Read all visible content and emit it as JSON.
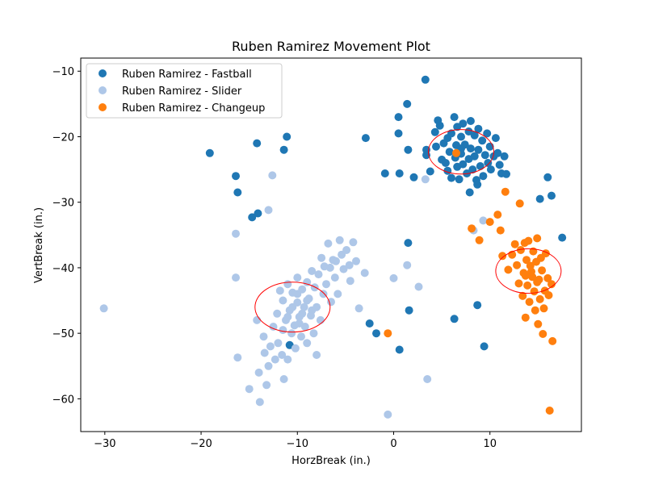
{
  "chart_data": {
    "type": "scatter",
    "title": "Ruben Ramirez Movement Plot",
    "xlabel": "HorzBreak (in.)",
    "ylabel": "VertBreak (in.)",
    "xlim": [
      -32.5,
      19.5
    ],
    "ylim": [
      -65,
      -8
    ],
    "xticks": [
      -30,
      -20,
      -10,
      0,
      10
    ],
    "yticks": [
      -60,
      -50,
      -40,
      -30,
      -20,
      -10
    ],
    "grid": false,
    "legend_position": "top-left",
    "series": [
      {
        "name": "Ruben Ramirez - Fastball",
        "color": "#1f77b4",
        "points": [
          [
            -19.1,
            -22.5
          ],
          [
            -16.4,
            -26
          ],
          [
            -16.2,
            -28.5
          ],
          [
            -14.7,
            -32.3
          ],
          [
            -14.2,
            -21
          ],
          [
            -14.1,
            -31.7
          ],
          [
            -11.4,
            -22
          ],
          [
            -11.1,
            -20
          ],
          [
            -2.9,
            -20.2
          ],
          [
            -0.9,
            -25.6
          ],
          [
            0.5,
            -17
          ],
          [
            0.5,
            -19.5
          ],
          [
            0.6,
            -25.6
          ],
          [
            1.4,
            -15
          ],
          [
            1.5,
            -22
          ],
          [
            2.1,
            -26.2
          ],
          [
            3.3,
            -11.3
          ],
          [
            3.4,
            -22
          ],
          [
            3.4,
            -22.8
          ],
          [
            3.8,
            -25.3
          ],
          [
            4.3,
            -19.3
          ],
          [
            4.4,
            -21.5
          ],
          [
            4.6,
            -17.5
          ],
          [
            4.8,
            -18.3
          ],
          [
            5.0,
            -23.5
          ],
          [
            5.2,
            -21
          ],
          [
            5.4,
            -24
          ],
          [
            5.6,
            -20.2
          ],
          [
            5.6,
            -25.2
          ],
          [
            5.8,
            -22.3
          ],
          [
            6.0,
            -19.5
          ],
          [
            6.0,
            -26.3
          ],
          [
            6.3,
            -17
          ],
          [
            6.4,
            -23.2
          ],
          [
            6.5,
            -21.3
          ],
          [
            6.6,
            -18.5
          ],
          [
            6.6,
            -24.6
          ],
          [
            6.8,
            -26.5
          ],
          [
            7.0,
            -20
          ],
          [
            7.0,
            -22.6
          ],
          [
            7.2,
            -18
          ],
          [
            7.2,
            -24.2
          ],
          [
            7.4,
            -21.2
          ],
          [
            7.6,
            -25.6
          ],
          [
            7.8,
            -19.2
          ],
          [
            7.8,
            -23.4
          ],
          [
            7.9,
            -28.5
          ],
          [
            8.0,
            -17.6
          ],
          [
            8.0,
            -21.8
          ],
          [
            8.2,
            -25
          ],
          [
            8.4,
            -19.8
          ],
          [
            8.4,
            -23
          ],
          [
            8.6,
            -26.6
          ],
          [
            8.7,
            -27.3
          ],
          [
            8.8,
            -18.8
          ],
          [
            8.8,
            -22
          ],
          [
            9.0,
            -24.5
          ],
          [
            9.2,
            -20.6
          ],
          [
            9.3,
            -26
          ],
          [
            9.5,
            -22.8
          ],
          [
            9.7,
            -19.5
          ],
          [
            9.8,
            -24
          ],
          [
            10.0,
            -21.5
          ],
          [
            10.1,
            -25
          ],
          [
            10.4,
            -23
          ],
          [
            10.6,
            -20.2
          ],
          [
            10.8,
            -22.5
          ],
          [
            11.0,
            -24.3
          ],
          [
            11.2,
            -25.6
          ],
          [
            11.5,
            -23
          ],
          [
            11.7,
            -25.7
          ],
          [
            7.0,
            -21.8
          ],
          [
            1.5,
            -36.2
          ],
          [
            1.6,
            -46.5
          ],
          [
            -2.5,
            -48.5
          ],
          [
            -1.8,
            -50
          ],
          [
            0.6,
            -52.5
          ],
          [
            6.3,
            -47.8
          ],
          [
            8.7,
            -45.7
          ],
          [
            9.4,
            -52
          ],
          [
            -10.8,
            -51.8
          ],
          [
            15.2,
            -29.5
          ],
          [
            16.0,
            -26.2
          ],
          [
            16.4,
            -29
          ],
          [
            17.5,
            -35.4
          ]
        ]
      },
      {
        "name": "Ruben Ramirez - Slider",
        "color": "#aec7e8",
        "points": [
          [
            -30.1,
            -46.2
          ],
          [
            -16.4,
            -34.8
          ],
          [
            -16.4,
            -41.5
          ],
          [
            -16.2,
            -53.7
          ],
          [
            -15,
            -58.5
          ],
          [
            -14.2,
            -48
          ],
          [
            -14,
            -56
          ],
          [
            -13.9,
            -60.5
          ],
          [
            -13.5,
            -50.5
          ],
          [
            -13.4,
            -53
          ],
          [
            -13.2,
            -57.9
          ],
          [
            -13,
            -55
          ],
          [
            -13,
            -31.2
          ],
          [
            -12.8,
            -52
          ],
          [
            -12.6,
            -25.9
          ],
          [
            -12.5,
            -49
          ],
          [
            -12.3,
            -54
          ],
          [
            -12.1,
            -47
          ],
          [
            -12,
            -51.5
          ],
          [
            -11.8,
            -43.5
          ],
          [
            -11.6,
            -53.3
          ],
          [
            -11.5,
            -45
          ],
          [
            -11.4,
            -57
          ],
          [
            -11.2,
            -48
          ],
          [
            -11,
            -54
          ],
          [
            -11,
            -42.5
          ],
          [
            -10.8,
            -46.5
          ],
          [
            -10.6,
            -50
          ],
          [
            -10.5,
            -43.8
          ],
          [
            -10.3,
            -48.8
          ],
          [
            -10.2,
            -52.3
          ],
          [
            -10,
            -45.3
          ],
          [
            -10,
            -41.5
          ],
          [
            -9.8,
            -47.5
          ],
          [
            -9.6,
            -50.5
          ],
          [
            -9.5,
            -43.3
          ],
          [
            -9.3,
            -46
          ],
          [
            -9.2,
            -49
          ],
          [
            -9,
            -42.2
          ],
          [
            -9,
            -51.5
          ],
          [
            -8.8,
            -44.7
          ],
          [
            -8.6,
            -47.3
          ],
          [
            -8.5,
            -40.5
          ],
          [
            -8.3,
            -50
          ],
          [
            -8.2,
            -43
          ],
          [
            -8,
            -46
          ],
          [
            -8,
            -53.3
          ],
          [
            -7.8,
            -41
          ],
          [
            -7.6,
            -48
          ],
          [
            -7.5,
            -38.5
          ],
          [
            -7.3,
            -44
          ],
          [
            -7.2,
            -39.8
          ],
          [
            -7,
            -42.5
          ],
          [
            -6.8,
            -36.3
          ],
          [
            -6.6,
            -40
          ],
          [
            -6.5,
            -45.2
          ],
          [
            -6.3,
            -38.8
          ],
          [
            -6.1,
            -41.5
          ],
          [
            -6,
            -39
          ],
          [
            -5.8,
            -44
          ],
          [
            -5.6,
            -35.8
          ],
          [
            -5.4,
            -38
          ],
          [
            -5.2,
            -40.2
          ],
          [
            -4.9,
            -37.3
          ],
          [
            -4.6,
            -39.6
          ],
          [
            -4.5,
            -42
          ],
          [
            -4.2,
            -36.1
          ],
          [
            -3.9,
            -39
          ],
          [
            -3.6,
            -46.2
          ],
          [
            -3,
            -40.8
          ],
          [
            -9.5,
            -47
          ],
          [
            -10.5,
            -46
          ],
          [
            -11,
            -47.5
          ],
          [
            -9,
            -45
          ],
          [
            -8.5,
            -46.5
          ],
          [
            -10,
            -44
          ],
          [
            -9.8,
            -48.5
          ],
          [
            -11.5,
            -49.5
          ],
          [
            -0.6,
            -62.4
          ],
          [
            0,
            -41.6
          ],
          [
            1.4,
            -39.6
          ],
          [
            2.6,
            -42.9
          ],
          [
            3.3,
            -26.5
          ],
          [
            3.5,
            -57
          ],
          [
            8.3,
            -34.3
          ],
          [
            9.3,
            -32.8
          ]
        ]
      },
      {
        "name": "Ruben Ramirez - Changeup",
        "color": "#ff7f0e",
        "points": [
          [
            -0.6,
            -50
          ],
          [
            6.5,
            -22.5
          ],
          [
            8.1,
            -34
          ],
          [
            8.9,
            -35.8
          ],
          [
            10,
            -33
          ],
          [
            10.8,
            -31.9
          ],
          [
            11.1,
            -34.3
          ],
          [
            11.3,
            -38.2
          ],
          [
            11.6,
            -28.4
          ],
          [
            11.9,
            -40.3
          ],
          [
            12.3,
            -38
          ],
          [
            12.6,
            -36.4
          ],
          [
            12.8,
            -39.6
          ],
          [
            13,
            -42.4
          ],
          [
            13.1,
            -30.2
          ],
          [
            13.2,
            -37.3
          ],
          [
            13.4,
            -44.3
          ],
          [
            13.5,
            -40.8
          ],
          [
            13.6,
            -36.2
          ],
          [
            13.7,
            -47.6
          ],
          [
            13.8,
            -38.8
          ],
          [
            13.9,
            -42.7
          ],
          [
            14,
            -35.9
          ],
          [
            14.1,
            -45.2
          ],
          [
            14.2,
            -39.7
          ],
          [
            14.4,
            -41.4
          ],
          [
            14.5,
            -37.5
          ],
          [
            14.6,
            -43.6
          ],
          [
            14.7,
            -46.5
          ],
          [
            14.8,
            -39.1
          ],
          [
            14.9,
            -35.5
          ],
          [
            15,
            -48.6
          ],
          [
            15.1,
            -41.8
          ],
          [
            15.2,
            -44.8
          ],
          [
            15.3,
            -38.5
          ],
          [
            15.4,
            -40.4
          ],
          [
            15.5,
            -50.1
          ],
          [
            15.6,
            -46.2
          ],
          [
            15.7,
            -43.5
          ],
          [
            15.8,
            -37.8
          ],
          [
            16,
            -41.6
          ],
          [
            16.1,
            -44.2
          ],
          [
            16.2,
            -61.8
          ],
          [
            16.4,
            -42.5
          ],
          [
            16.5,
            -51.2
          ],
          [
            14.3,
            -40.6
          ],
          [
            14.9,
            -42.2
          ],
          [
            13.7,
            -41.2
          ]
        ]
      }
    ],
    "ellipses": [
      {
        "color": "#ff0000",
        "cx": 7,
        "cy": -22.3,
        "rx": 3.4,
        "ry": 3.4
      },
      {
        "color": "#ff0000",
        "cx": 14,
        "cy": -40.5,
        "rx": 3.4,
        "ry": 3.4
      },
      {
        "color": "#ff0000",
        "cx": -10.5,
        "cy": -46,
        "rx": 3.9,
        "ry": 3.8
      }
    ]
  }
}
